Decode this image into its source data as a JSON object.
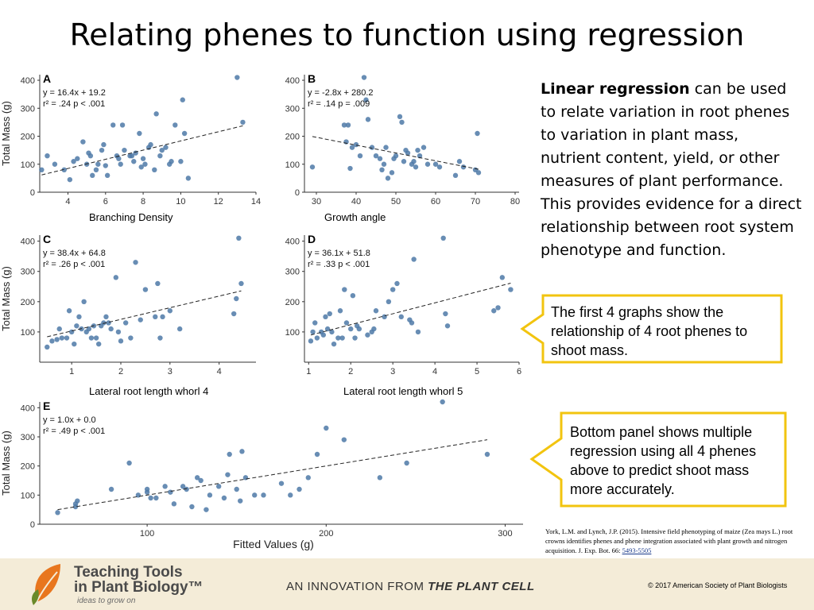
{
  "title": "Relating phenes to function using regression",
  "chart_data": [
    {
      "id": "A",
      "type": "scatter",
      "panel_label": "A",
      "xlabel": "Branching Density",
      "ylabel": "Total Mass (g)",
      "equation": "y = 16.4x + 19.2",
      "stats": "r² = .24 p < .001",
      "xlim": [
        2.5,
        14
      ],
      "ylim": [
        0,
        420
      ],
      "xticks": [
        4,
        6,
        8,
        10,
        12,
        14
      ],
      "yticks": [
        0,
        100,
        200,
        300,
        400
      ],
      "fit": {
        "slope": 16.4,
        "intercept": 19.2
      },
      "points": [
        [
          2.6,
          80
        ],
        [
          2.9,
          130
        ],
        [
          3.3,
          100
        ],
        [
          3.8,
          80
        ],
        [
          4.1,
          45
        ],
        [
          4.3,
          110
        ],
        [
          4.5,
          120
        ],
        [
          4.8,
          180
        ],
        [
          5.0,
          100
        ],
        [
          5.1,
          140
        ],
        [
          5.2,
          130
        ],
        [
          5.3,
          60
        ],
        [
          5.5,
          80
        ],
        [
          5.6,
          100
        ],
        [
          5.8,
          150
        ],
        [
          5.9,
          170
        ],
        [
          6.0,
          95
        ],
        [
          6.1,
          60
        ],
        [
          6.4,
          240
        ],
        [
          6.6,
          130
        ],
        [
          6.7,
          120
        ],
        [
          6.8,
          100
        ],
        [
          6.9,
          240
        ],
        [
          7.0,
          150
        ],
        [
          7.3,
          130
        ],
        [
          7.4,
          130
        ],
        [
          7.5,
          110
        ],
        [
          7.6,
          140
        ],
        [
          7.8,
          210
        ],
        [
          7.9,
          90
        ],
        [
          8.0,
          120
        ],
        [
          8.1,
          100
        ],
        [
          8.3,
          160
        ],
        [
          8.4,
          170
        ],
        [
          8.6,
          80
        ],
        [
          8.7,
          280
        ],
        [
          8.9,
          130
        ],
        [
          9.0,
          150
        ],
        [
          9.2,
          160
        ],
        [
          9.4,
          100
        ],
        [
          9.5,
          110
        ],
        [
          9.7,
          240
        ],
        [
          10.0,
          110
        ],
        [
          10.1,
          330
        ],
        [
          10.2,
          210
        ],
        [
          10.4,
          50
        ],
        [
          13.0,
          410
        ],
        [
          13.3,
          250
        ]
      ]
    },
    {
      "id": "B",
      "type": "scatter",
      "panel_label": "B",
      "xlabel": "Growth angle",
      "ylabel": "",
      "equation": "y = -2.8x + 280.2",
      "stats": "r² = .14 p = .009",
      "xlim": [
        27,
        81
      ],
      "ylim": [
        0,
        420
      ],
      "xticks": [
        30,
        40,
        50,
        60,
        70,
        80
      ],
      "yticks": [
        0,
        100,
        200,
        300,
        400
      ],
      "fit": {
        "slope": -2.8,
        "intercept": 280.2
      },
      "points": [
        [
          29,
          90
        ],
        [
          37,
          240
        ],
        [
          37.5,
          180
        ],
        [
          38,
          240
        ],
        [
          38.5,
          85
        ],
        [
          39,
          160
        ],
        [
          40,
          170
        ],
        [
          41,
          130
        ],
        [
          42,
          410
        ],
        [
          42.5,
          330
        ],
        [
          43,
          260
        ],
        [
          44,
          160
        ],
        [
          45,
          130
        ],
        [
          46,
          120
        ],
        [
          46.5,
          80
        ],
        [
          47,
          100
        ],
        [
          47.5,
          160
        ],
        [
          48,
          50
        ],
        [
          49,
          70
        ],
        [
          49.5,
          120
        ],
        [
          50,
          130
        ],
        [
          51,
          270
        ],
        [
          51.5,
          250
        ],
        [
          52,
          110
        ],
        [
          52.5,
          150
        ],
        [
          53,
          140
        ],
        [
          54,
          100
        ],
        [
          54.5,
          110
        ],
        [
          55,
          90
        ],
        [
          55.5,
          150
        ],
        [
          56,
          130
        ],
        [
          57,
          160
        ],
        [
          58,
          100
        ],
        [
          60,
          100
        ],
        [
          61,
          90
        ],
        [
          65,
          60
        ],
        [
          66,
          110
        ],
        [
          67,
          90
        ],
        [
          70,
          80
        ],
        [
          70.5,
          210
        ],
        [
          70.8,
          70
        ]
      ]
    },
    {
      "id": "C",
      "type": "scatter",
      "panel_label": "C",
      "xlabel": "Lateral root length whorl 4",
      "ylabel": "Total Mass (g)",
      "equation": "y = 38.4x + 64.8",
      "stats": "r² = .26 p < .001",
      "xlim": [
        0.35,
        4.75
      ],
      "ylim": [
        0,
        420
      ],
      "xticks": [
        1,
        2,
        3,
        4
      ],
      "yticks": [
        100,
        200,
        300,
        400
      ],
      "fit": {
        "slope": 38.4,
        "intercept": 64.8
      },
      "points": [
        [
          0.5,
          50
        ],
        [
          0.6,
          70
        ],
        [
          0.7,
          75
        ],
        [
          0.75,
          110
        ],
        [
          0.8,
          80
        ],
        [
          0.9,
          80
        ],
        [
          0.95,
          170
        ],
        [
          1.0,
          100
        ],
        [
          1.05,
          60
        ],
        [
          1.1,
          120
        ],
        [
          1.15,
          150
        ],
        [
          1.2,
          110
        ],
        [
          1.25,
          200
        ],
        [
          1.3,
          100
        ],
        [
          1.35,
          110
        ],
        [
          1.4,
          80
        ],
        [
          1.45,
          120
        ],
        [
          1.5,
          80
        ],
        [
          1.55,
          60
        ],
        [
          1.6,
          120
        ],
        [
          1.65,
          130
        ],
        [
          1.7,
          150
        ],
        [
          1.75,
          130
        ],
        [
          1.8,
          110
        ],
        [
          1.9,
          280
        ],
        [
          1.95,
          100
        ],
        [
          2.0,
          70
        ],
        [
          2.1,
          130
        ],
        [
          2.2,
          80
        ],
        [
          2.3,
          330
        ],
        [
          2.4,
          140
        ],
        [
          2.5,
          240
        ],
        [
          2.7,
          150
        ],
        [
          2.75,
          260
        ],
        [
          2.8,
          80
        ],
        [
          2.85,
          150
        ],
        [
          3.0,
          170
        ],
        [
          3.2,
          110
        ],
        [
          4.3,
          160
        ],
        [
          4.35,
          210
        ],
        [
          4.4,
          410
        ],
        [
          4.45,
          260
        ]
      ]
    },
    {
      "id": "D",
      "type": "scatter",
      "panel_label": "D",
      "xlabel": "Lateral root length whorl 5",
      "ylabel": "",
      "equation": "y = 36.1x + 51.8",
      "stats": "r² = .33 p < .001",
      "xlim": [
        0.9,
        6.0
      ],
      "ylim": [
        0,
        420
      ],
      "xticks": [
        1,
        2,
        3,
        4,
        5,
        6
      ],
      "yticks": [
        100,
        200,
        300,
        400
      ],
      "fit": {
        "slope": 36.1,
        "intercept": 51.8
      },
      "points": [
        [
          1.05,
          70
        ],
        [
          1.1,
          100
        ],
        [
          1.15,
          130
        ],
        [
          1.2,
          80
        ],
        [
          1.3,
          100
        ],
        [
          1.35,
          90
        ],
        [
          1.4,
          150
        ],
        [
          1.45,
          110
        ],
        [
          1.5,
          160
        ],
        [
          1.55,
          100
        ],
        [
          1.6,
          60
        ],
        [
          1.7,
          80
        ],
        [
          1.75,
          170
        ],
        [
          1.8,
          80
        ],
        [
          1.85,
          240
        ],
        [
          1.9,
          130
        ],
        [
          2.0,
          110
        ],
        [
          2.05,
          220
        ],
        [
          2.1,
          80
        ],
        [
          2.15,
          120
        ],
        [
          2.2,
          110
        ],
        [
          2.4,
          90
        ],
        [
          2.5,
          100
        ],
        [
          2.55,
          110
        ],
        [
          2.6,
          170
        ],
        [
          2.8,
          150
        ],
        [
          2.9,
          200
        ],
        [
          3.0,
          240
        ],
        [
          3.1,
          260
        ],
        [
          3.2,
          150
        ],
        [
          3.4,
          140
        ],
        [
          3.45,
          130
        ],
        [
          3.5,
          340
        ],
        [
          3.6,
          100
        ],
        [
          4.2,
          410
        ],
        [
          4.25,
          160
        ],
        [
          4.3,
          120
        ],
        [
          5.4,
          170
        ],
        [
          5.5,
          180
        ],
        [
          5.6,
          280
        ],
        [
          5.8,
          240
        ]
      ]
    },
    {
      "id": "E",
      "type": "scatter",
      "panel_label": "E",
      "xlabel": "Fitted Values (g)",
      "ylabel": "Total Mass (g)",
      "equation": "y = 1.0x + 0.0",
      "stats": "r² = .49 p < .001",
      "xlim": [
        40,
        310
      ],
      "ylim": [
        0,
        420
      ],
      "xticks": [
        100,
        200,
        300
      ],
      "yticks": [
        0,
        100,
        200,
        300,
        400
      ],
      "fit": {
        "slope": 1.0,
        "intercept": 0.0
      },
      "points": [
        [
          50,
          40
        ],
        [
          60,
          70
        ],
        [
          61,
          80
        ],
        [
          60,
          60
        ],
        [
          80,
          120
        ],
        [
          90,
          210
        ],
        [
          95,
          100
        ],
        [
          100,
          120
        ],
        [
          100,
          110
        ],
        [
          102,
          90
        ],
        [
          105,
          90
        ],
        [
          110,
          130
        ],
        [
          113,
          110
        ],
        [
          115,
          70
        ],
        [
          120,
          130
        ],
        [
          122,
          120
        ],
        [
          125,
          60
        ],
        [
          128,
          160
        ],
        [
          130,
          150
        ],
        [
          133,
          50
        ],
        [
          135,
          100
        ],
        [
          140,
          130
        ],
        [
          143,
          90
        ],
        [
          145,
          170
        ],
        [
          146,
          240
        ],
        [
          150,
          120
        ],
        [
          152,
          80
        ],
        [
          153,
          250
        ],
        [
          155,
          160
        ],
        [
          160,
          100
        ],
        [
          165,
          100
        ],
        [
          175,
          140
        ],
        [
          180,
          100
        ],
        [
          185,
          120
        ],
        [
          190,
          160
        ],
        [
          195,
          240
        ],
        [
          200,
          330
        ],
        [
          210,
          290
        ],
        [
          230,
          160
        ],
        [
          245,
          210
        ],
        [
          265,
          420
        ],
        [
          290,
          240
        ]
      ]
    }
  ],
  "right_text": {
    "bold": "Linear regression",
    "rest": " can be used to relate variation in root phenes to variation in plant mass, nutrient content, yield, or other measures of plant performance. This provides evidence for a direct relationship between root system phenotype and function."
  },
  "callout1": "The first 4 graphs show the relationship of 4 root phenes to shoot mass.",
  "callout2": "Bottom panel shows multiple regression using all 4 phenes above to predict shoot mass more accurately.",
  "citation": {
    "text": "York, L.M. and Lynch, J.P. (2015). Intensive field phenotyping of maize (Zea mays L.) root crowns identifies phenes and phene integration associated with plant growth and nitrogen acquisition. J. Exp. Bot. 66: ",
    "link": "5493-5505"
  },
  "footer": {
    "logo_line1": "Teaching Tools",
    "logo_line2": "in Plant Biology™",
    "logo_tag": "ideas to grow on",
    "innovation_prefix": "AN INNOVATION FROM ",
    "innovation_brand": "THE PLANT CELL",
    "copyright": "© 2017 American Society of Plant Biologists"
  },
  "colors": {
    "point": "#4e79a7",
    "callout_border": "#f2c40f",
    "footer_bg": "#f4ecd8"
  }
}
